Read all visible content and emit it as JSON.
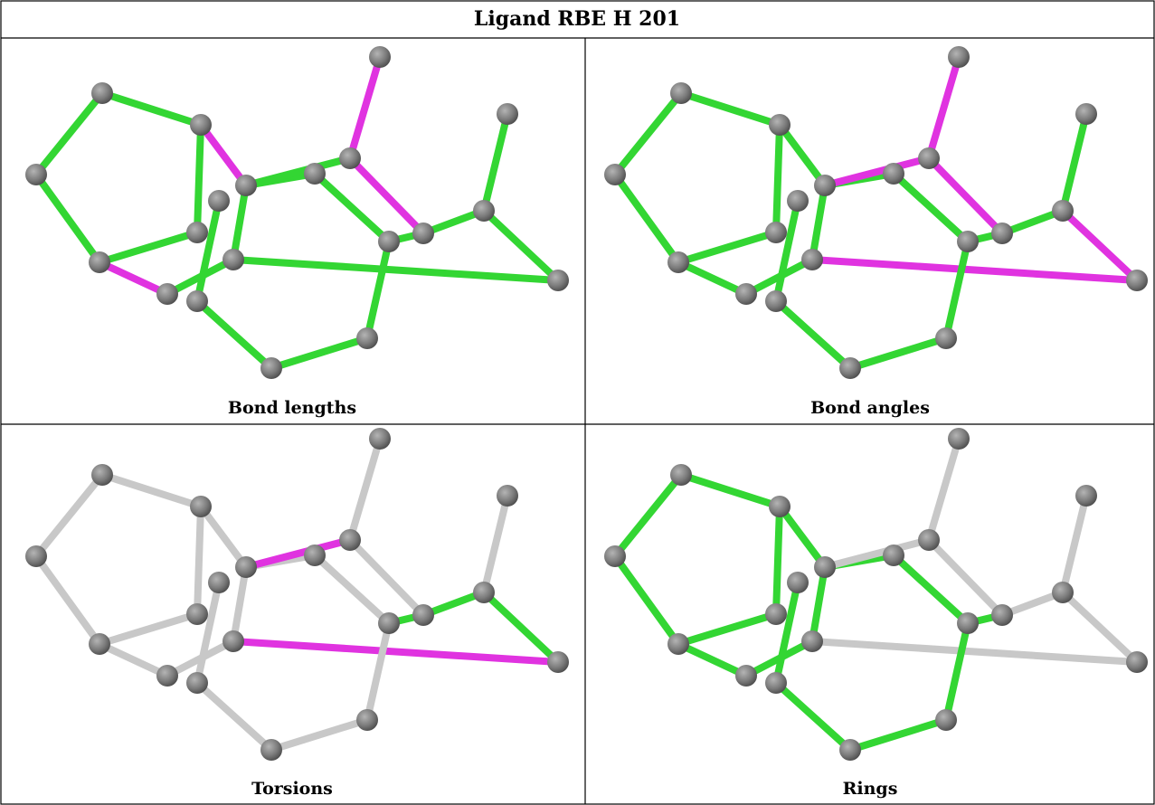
{
  "title": "Ligand RBE H 201",
  "panels": [
    {
      "caption": "Bond lengths"
    },
    {
      "caption": "Bond angles"
    },
    {
      "caption": "Torsions"
    },
    {
      "caption": "Rings"
    }
  ]
}
